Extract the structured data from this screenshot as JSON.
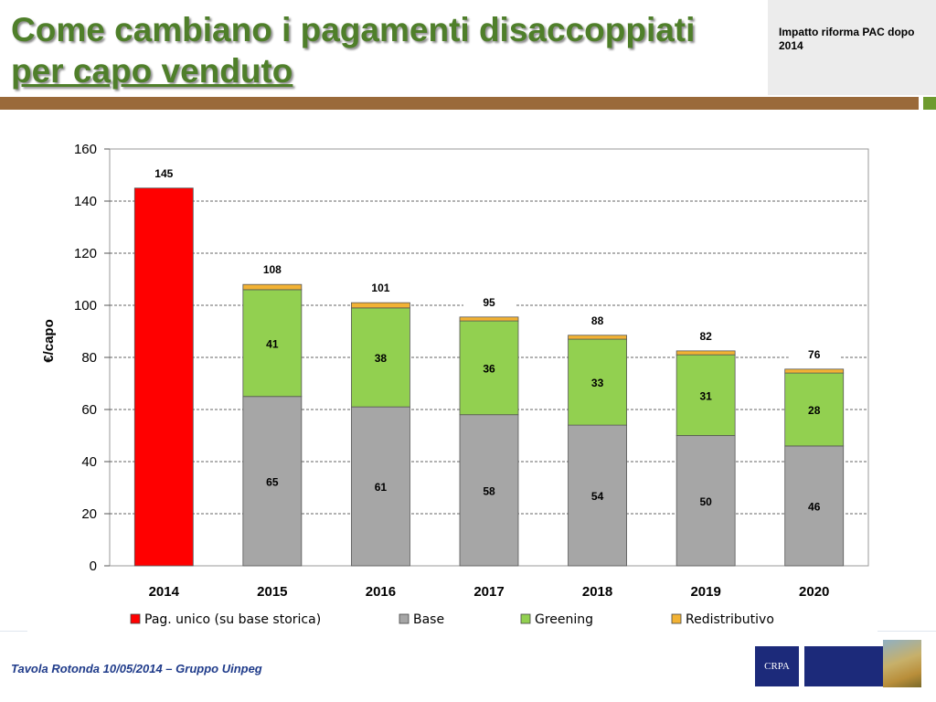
{
  "header": {
    "title_line1": "Come cambiano i pagamenti disaccoppiati",
    "title_line2": "per capo venduto",
    "subtitle": "Impatto riforma PAC dopo 2014"
  },
  "footer": {
    "text": "Tavola Rotonda  10/05/2014 – Gruppo Uinpeg",
    "logo_text": "CRPA"
  },
  "colors": {
    "pag_unico": "#ff0000",
    "base": "#a6a6a6",
    "greening": "#92d050",
    "redistributivo": "#f2b234",
    "title": "#4f7f2a"
  },
  "chart_data": {
    "type": "bar",
    "stacked": true,
    "ylabel": "€/capo",
    "xlabel": "",
    "ylim": [
      0,
      160
    ],
    "yticks": [
      0,
      20,
      40,
      60,
      80,
      100,
      120,
      140,
      160
    ],
    "grid": true,
    "legend_position": "bottom",
    "categories": [
      "2014",
      "2015",
      "2016",
      "2017",
      "2018",
      "2019",
      "2020"
    ],
    "series": [
      {
        "name": "Pag. unico (su base storica)",
        "values": [
          145,
          0,
          0,
          0,
          0,
          0,
          0
        ],
        "labels": [
          "",
          "",
          "",
          "",
          "",
          "",
          ""
        ]
      },
      {
        "name": "Base",
        "values": [
          0,
          65,
          61,
          58,
          54,
          50,
          46
        ],
        "labels": [
          "",
          "65",
          "61",
          "58",
          "54",
          "50",
          "46"
        ]
      },
      {
        "name": "Greening",
        "values": [
          0,
          41,
          38,
          36,
          33,
          31,
          28
        ],
        "labels": [
          "",
          "41",
          "38",
          "36",
          "33",
          "31",
          "28"
        ]
      },
      {
        "name": "Redistributivo",
        "values": [
          0,
          2,
          2,
          1.5,
          1.5,
          1.5,
          1.5
        ],
        "labels": [
          "",
          "",
          "",
          "",
          "",
          "",
          ""
        ]
      }
    ],
    "totals": [
      "145",
      "108",
      "101",
      "95",
      "88",
      "82",
      "76"
    ]
  }
}
